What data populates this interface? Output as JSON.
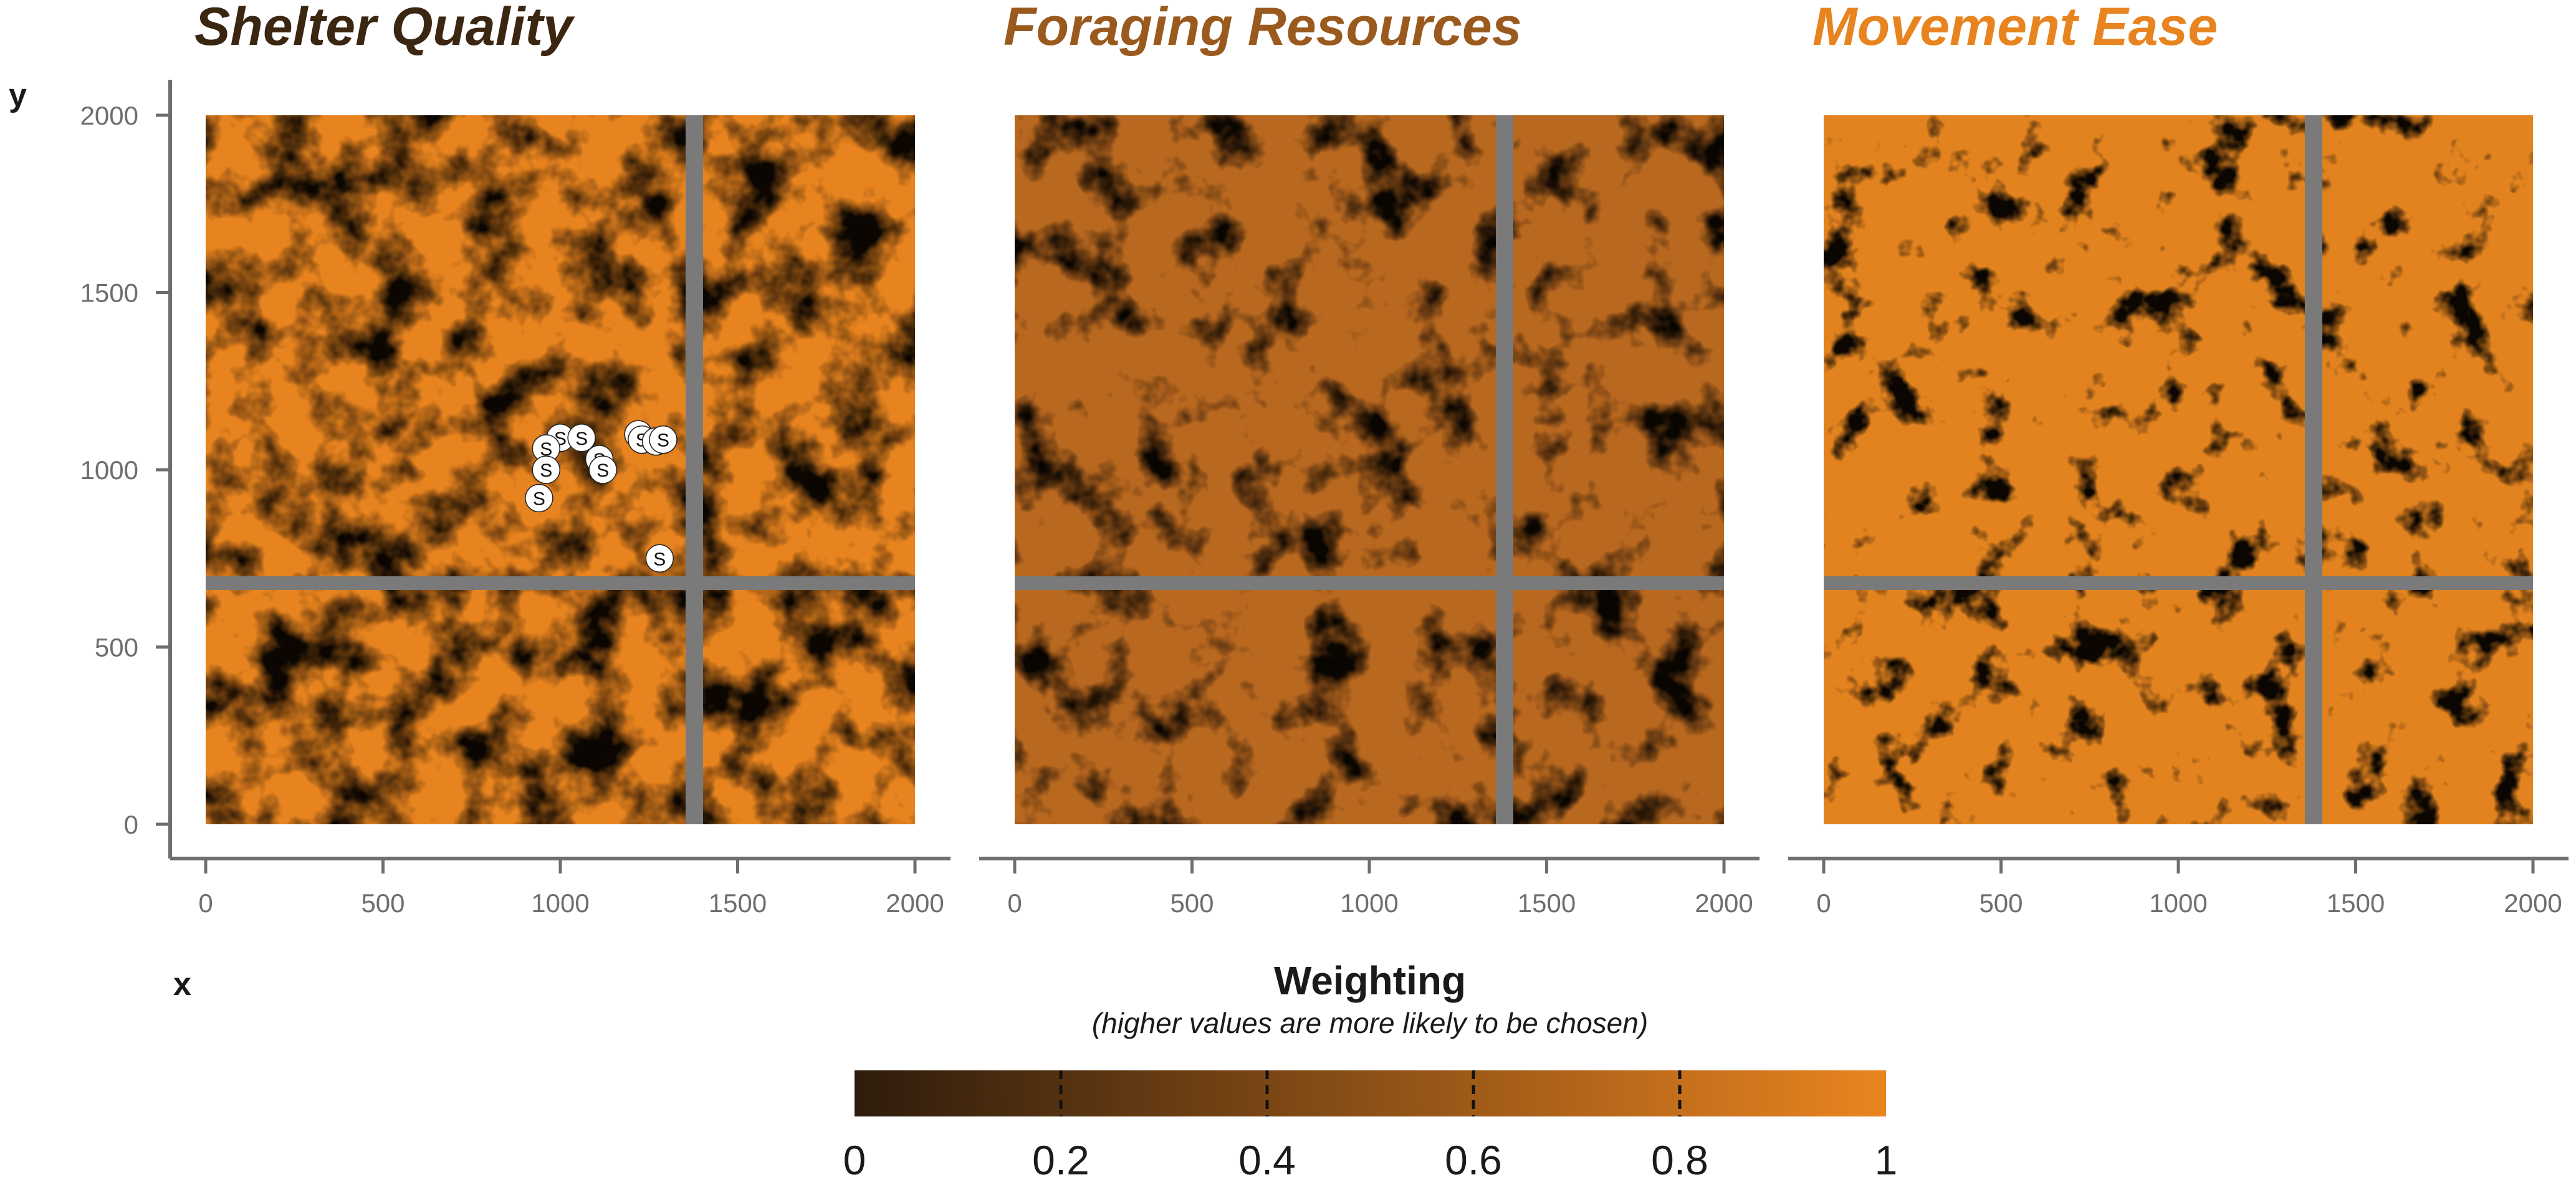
{
  "chart_data": [
    {
      "type": "heatmap",
      "title": "Shelter Quality",
      "title_color": "#3a2611",
      "xlabel": "x",
      "ylabel": "y",
      "xlim": [
        0,
        2000
      ],
      "ylim": [
        0,
        2000
      ],
      "x_ticks": [
        "0",
        "500",
        "1000",
        "1500",
        "2000"
      ],
      "y_ticks": [
        "0",
        "500",
        "1000",
        "1500",
        "2000"
      ],
      "roads": {
        "x_position": 1380,
        "y_position": 680
      },
      "value_fraction_high": 0.55,
      "shelter_points": {
        "label": "S",
        "points": [
          [
            1000,
            1090
          ],
          [
            1060,
            1090
          ],
          [
            960,
            1060
          ],
          [
            1110,
            1030
          ],
          [
            1120,
            1000
          ],
          [
            960,
            1000
          ],
          [
            940,
            920
          ],
          [
            1220,
            1100
          ],
          [
            1230,
            1085
          ],
          [
            1270,
            1080
          ],
          [
            1290,
            1085
          ],
          [
            1280,
            750
          ]
        ]
      }
    },
    {
      "type": "heatmap",
      "title": "Foraging Resources",
      "title_color": "#9a5a1e",
      "xlim": [
        0,
        2000
      ],
      "ylim": [
        0,
        2000
      ],
      "x_ticks": [
        "0",
        "500",
        "1000",
        "1500",
        "2000"
      ],
      "roads": {
        "x_position": 1380,
        "y_position": 680
      },
      "value_fraction_high": 0.7
    },
    {
      "type": "heatmap",
      "title": "Movement Ease",
      "title_color": "#e88420",
      "xlim": [
        0,
        2000
      ],
      "ylim": [
        0,
        2000
      ],
      "x_ticks": [
        "0",
        "500",
        "1000",
        "1500",
        "2000"
      ],
      "roads": {
        "x_position": 1380,
        "y_position": 680
      },
      "value_fraction_high": 0.93
    }
  ],
  "legend": {
    "title": "Weighting",
    "subtitle": "(higher values are more likely to be chosen)",
    "ticks": [
      "0",
      "0.2",
      "0.4",
      "0.6",
      "0.8",
      "1"
    ],
    "color_low": "#2e1c0c",
    "color_high": "#ea8420"
  },
  "colors": {
    "road": "#7a7a7a",
    "axis": "#6e6e6e"
  }
}
